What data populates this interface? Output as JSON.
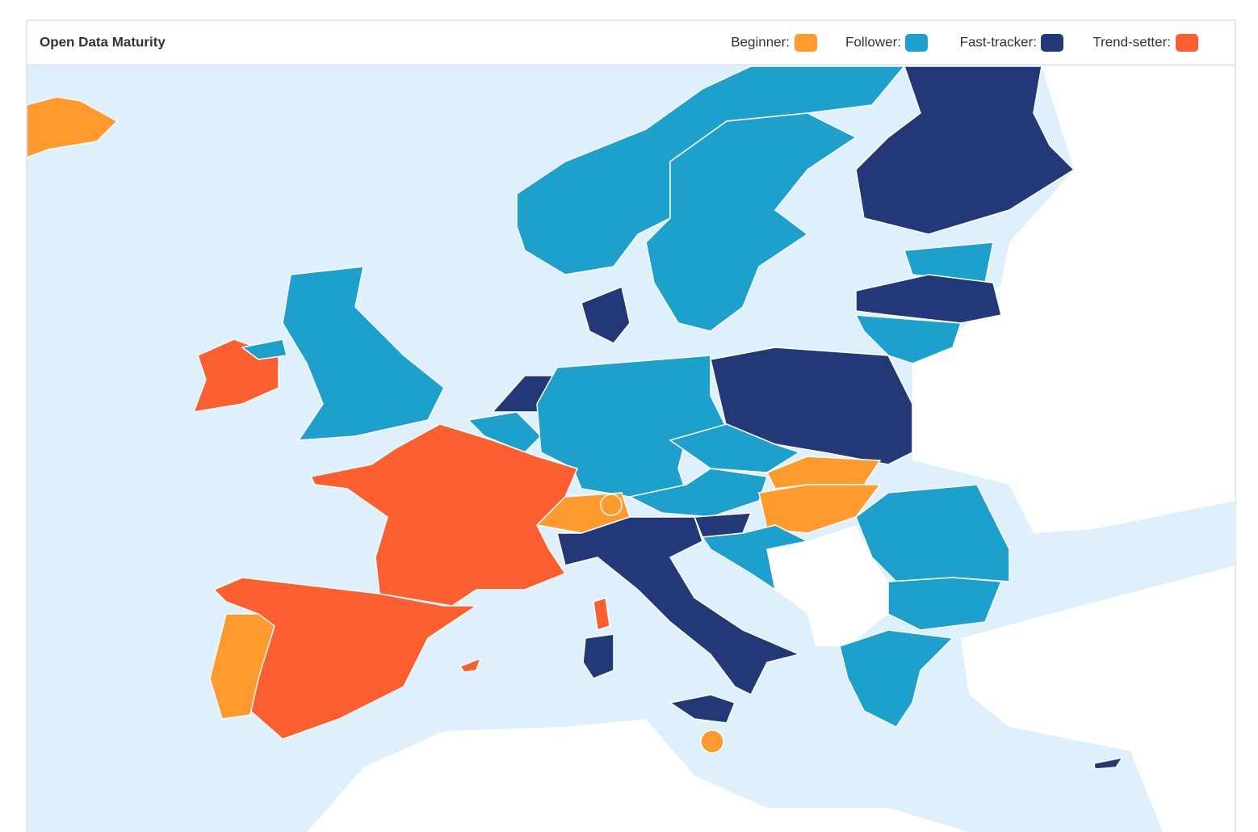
{
  "title": "Open Data Maturity",
  "legend": [
    {
      "label": "Beginner:",
      "color": "#ff9a2e"
    },
    {
      "label": "Follower:",
      "color": "#1ea0cd"
    },
    {
      "label": "Fast-tracker:",
      "color": "#233876"
    },
    {
      "label": "Trend-setter:",
      "color": "#fb5f2f"
    }
  ]
}
